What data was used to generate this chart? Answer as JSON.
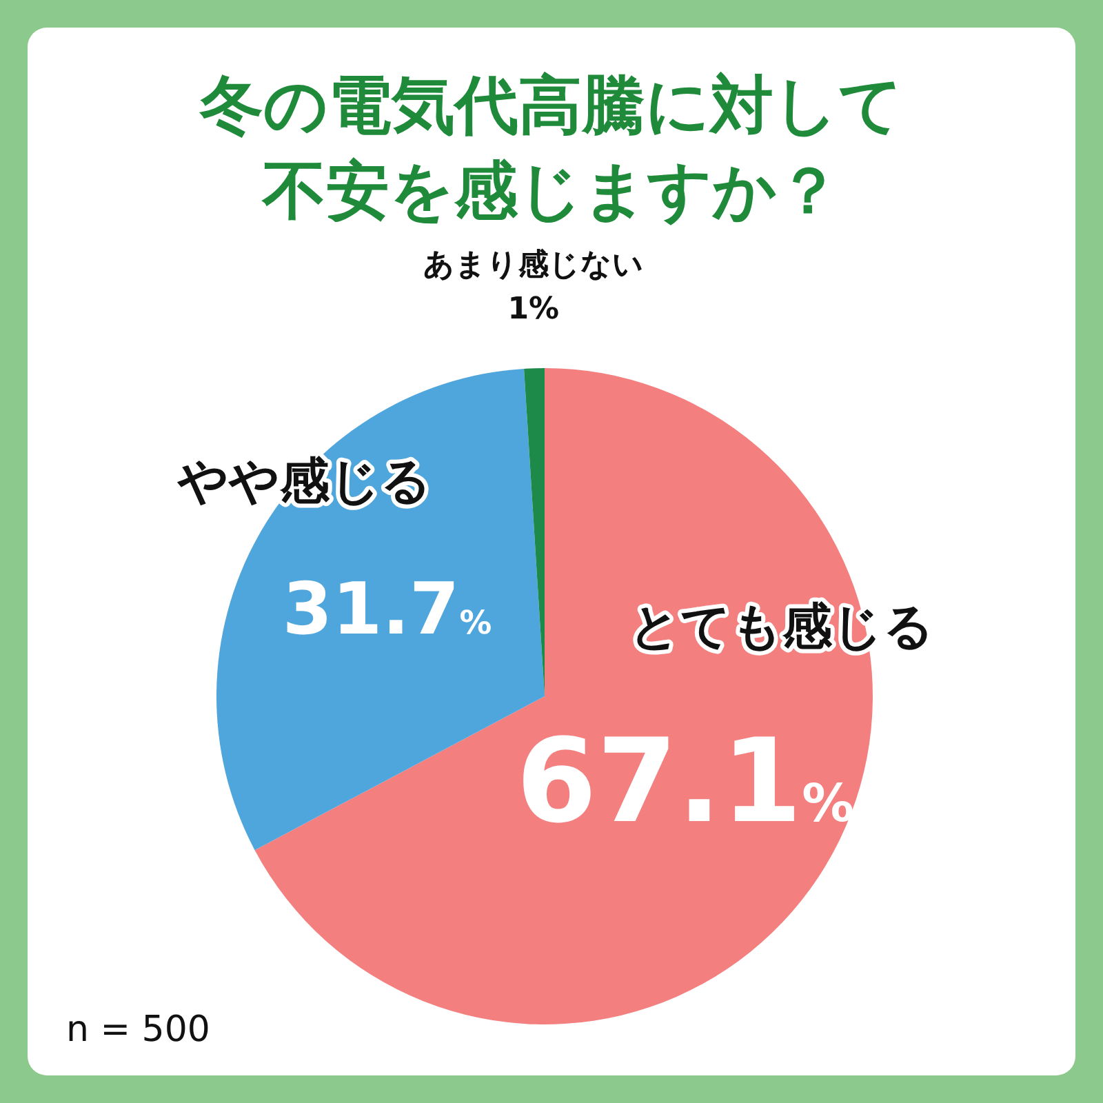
{
  "chart_data": {
    "type": "pie",
    "title": "冬の電気代高騰に対して不安を感じますか？",
    "categories": [
      "とても感じる",
      "やや感じる",
      "あまり感じない"
    ],
    "values": [
      67.1,
      31.7,
      1
    ],
    "colors": [
      "#f47f7f",
      "#4fa6dc",
      "#1e8a4a"
    ],
    "value_labels": [
      "67.1%",
      "31.7%",
      "1%"
    ],
    "annotations": [
      "n = 500"
    ]
  }
}
